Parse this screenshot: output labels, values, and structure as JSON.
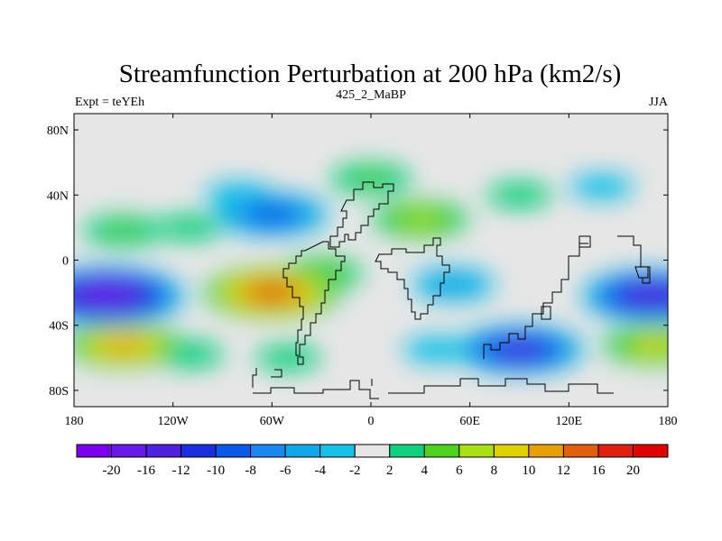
{
  "chart_data": {
    "type": "heatmap",
    "title": "Streamfunction Perturbation at 200 hPa (km2/s)",
    "subtitle_left": "Expt = teYEh",
    "subtitle_center": "425_2_MaBP",
    "subtitle_right": "JJA",
    "x_range": [
      -180,
      180
    ],
    "y_range": [
      -90,
      90
    ],
    "x_ticks": [
      {
        "value": -180,
        "label": "180"
      },
      {
        "value": -120,
        "label": "120W"
      },
      {
        "value": -60,
        "label": "60W"
      },
      {
        "value": 0,
        "label": "0"
      },
      {
        "value": 60,
        "label": "60E"
      },
      {
        "value": 120,
        "label": "120E"
      },
      {
        "value": 180,
        "label": "180"
      }
    ],
    "y_ticks": [
      {
        "value": 80,
        "label": "80N"
      },
      {
        "value": 40,
        "label": "40N"
      },
      {
        "value": 0,
        "label": "0"
      },
      {
        "value": -40,
        "label": "40S"
      },
      {
        "value": -80,
        "label": "80S"
      }
    ],
    "colorbar_labels": [
      "-20",
      "-16",
      "-12",
      "-10",
      "-8",
      "-6",
      "-4",
      "-2",
      "2",
      "4",
      "6",
      "8",
      "10",
      "12",
      "16",
      "20"
    ],
    "colorbar_colors": [
      "#7b00f0",
      "#6818e8",
      "#5020e0",
      "#1a30e0",
      "#0a5ae8",
      "#1a88f0",
      "#10a8e8",
      "#18c0e8",
      "#e6e6e6",
      "#10d080",
      "#50d020",
      "#a8e010",
      "#e0d000",
      "#e8a000",
      "#e06010",
      "#e02010",
      "#e00000"
    ],
    "field_centers": [
      {
        "lon": -60,
        "lat": 28,
        "value": -10.5
      },
      {
        "lon": -80,
        "lat": 40,
        "value": -4
      },
      {
        "lon": -150,
        "lat": 18,
        "value": 5
      },
      {
        "lon": -110,
        "lat": 20,
        "value": 3
      },
      {
        "lon": -60,
        "lat": -20,
        "value": 15.5
      },
      {
        "lon": -30,
        "lat": -8,
        "value": 6
      },
      {
        "lon": -160,
        "lat": -22,
        "value": -19
      },
      {
        "lon": -150,
        "lat": -52,
        "value": 12
      },
      {
        "lon": -110,
        "lat": -58,
        "value": 4
      },
      {
        "lon": -50,
        "lat": -60,
        "value": 3
      },
      {
        "lon": 30,
        "lat": 25,
        "value": 8
      },
      {
        "lon": 0,
        "lat": 50,
        "value": 5
      },
      {
        "lon": 90,
        "lat": 40,
        "value": 3
      },
      {
        "lon": 140,
        "lat": 45,
        "value": -3
      },
      {
        "lon": 50,
        "lat": -15,
        "value": -6
      },
      {
        "lon": 90,
        "lat": -55,
        "value": -14
      },
      {
        "lon": 40,
        "lat": -55,
        "value": -4
      },
      {
        "lon": 170,
        "lat": -22,
        "value": -16
      },
      {
        "lon": 172,
        "lat": -52,
        "value": 9
      }
    ]
  }
}
